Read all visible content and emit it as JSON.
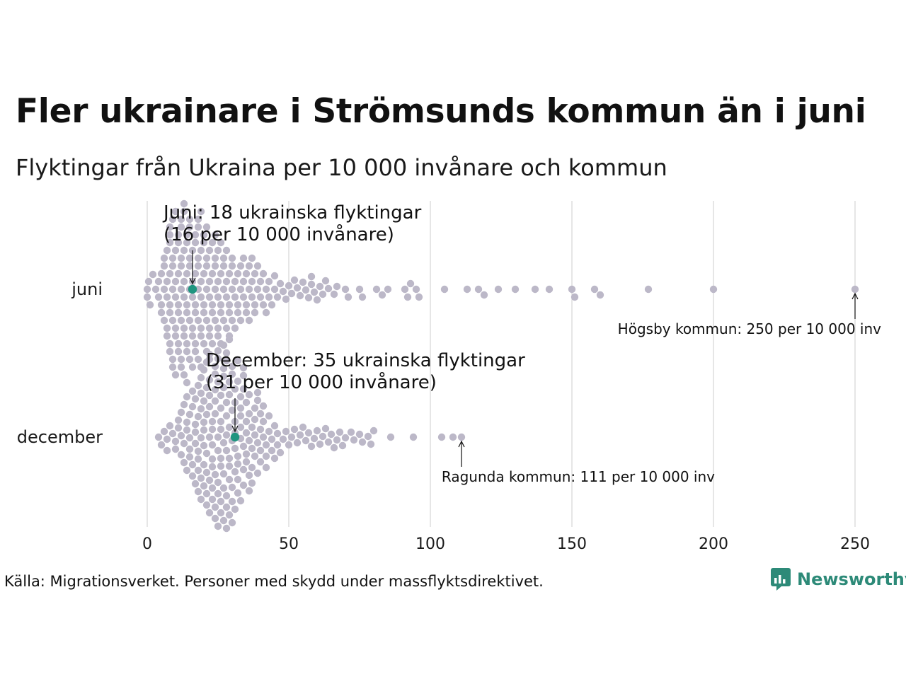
{
  "header": {
    "title": "Fler ukrainare i Strömsunds kommun än i juni",
    "subtitle": "Flyktingar från Ukraina per 10 000 invånare och kommun"
  },
  "footer": {
    "source": "Källa: Migrationsverket. Personer med skydd under massflyktsdirektivet.",
    "brand": "Newsworthy",
    "brand_icon": "newsworthy-logo-icon"
  },
  "colors": {
    "dot": "#bcb8c8",
    "highlight": "#1f9580",
    "grid": "#cccccc",
    "brand": "#2d8a78"
  },
  "chart_data": {
    "type": "scatter",
    "subtype": "beeswarm",
    "xlim": [
      0,
      250
    ],
    "xticks": [
      0,
      50,
      100,
      150,
      200,
      250
    ],
    "categories": [
      "juni",
      "december"
    ],
    "grid": true,
    "highlight": [
      {
        "category": "juni",
        "value": 16,
        "label_line1": "Juni: 18 ukrainska flyktingar",
        "label_line2": "(16 per 10 000 invånare)"
      },
      {
        "category": "december",
        "value": 31,
        "label_line1": "December: 35 ukrainska flyktingar",
        "label_line2": "(31 per 10 000 invånare)"
      }
    ],
    "annotations": [
      {
        "category": "juni",
        "value": 250,
        "text": "Högsby kommun: 250 per 10 000 inv"
      },
      {
        "category": "december",
        "value": 111,
        "text": "Ragunda kommun: 111 per 10 000 inv"
      }
    ],
    "series": [
      {
        "name": "juni",
        "values": [
          0,
          0,
          0.5,
          1,
          2,
          3,
          4,
          4,
          5,
          5,
          5,
          6,
          6,
          6,
          6,
          7,
          7,
          7,
          7,
          7,
          8,
          8,
          8,
          8,
          8,
          8,
          8,
          8,
          9,
          9,
          9,
          9,
          9,
          9,
          9,
          10,
          10,
          10,
          10,
          10,
          10,
          10,
          11,
          11,
          11,
          11,
          11,
          11,
          11,
          12,
          12,
          12,
          12,
          12,
          12,
          12,
          12,
          13,
          13,
          13,
          13,
          13,
          13,
          13,
          13,
          14,
          14,
          14,
          14,
          14,
          14,
          14,
          14,
          15,
          15,
          15,
          15,
          15,
          15,
          15,
          16,
          16,
          16,
          16,
          16,
          16,
          17,
          17,
          17,
          17,
          17,
          17,
          17,
          18,
          18,
          18,
          18,
          18,
          18,
          18,
          19,
          19,
          19,
          19,
          19,
          19,
          19,
          20,
          20,
          20,
          20,
          20,
          20,
          21,
          21,
          21,
          21,
          21,
          21,
          22,
          22,
          22,
          22,
          22,
          22,
          23,
          23,
          23,
          23,
          23,
          24,
          24,
          24,
          24,
          24,
          25,
          25,
          25,
          25,
          25,
          26,
          26,
          26,
          26,
          26,
          27,
          27,
          27,
          27,
          28,
          28,
          28,
          28,
          29,
          29,
          29,
          29,
          30,
          30,
          30,
          30,
          31,
          31,
          31,
          32,
          32,
          32,
          33,
          33,
          33,
          34,
          34,
          34,
          35,
          35,
          35,
          36,
          36,
          36,
          37,
          37,
          37,
          38,
          38,
          38,
          39,
          39,
          40,
          40,
          41,
          41,
          42,
          42,
          43,
          43,
          44,
          45,
          45,
          46,
          47,
          48,
          49,
          50,
          51,
          52,
          53,
          54,
          55,
          56,
          57,
          58,
          58,
          59,
          60,
          61,
          62,
          63,
          64,
          66,
          67,
          70,
          71,
          75,
          76,
          81,
          83,
          85,
          91,
          92,
          93,
          95,
          96,
          105,
          113,
          117,
          119,
          124,
          130,
          137,
          142,
          150,
          151,
          158,
          160,
          177,
          200,
          250
        ]
      },
      {
        "name": "december",
        "values": [
          4,
          5,
          6,
          7,
          7,
          8,
          9,
          10,
          10,
          11,
          11,
          12,
          12,
          12,
          13,
          13,
          13,
          14,
          14,
          14,
          14,
          15,
          15,
          15,
          15,
          16,
          16,
          16,
          16,
          17,
          17,
          17,
          17,
          17,
          18,
          18,
          18,
          18,
          18,
          18,
          19,
          19,
          19,
          19,
          19,
          19,
          20,
          20,
          20,
          20,
          20,
          20,
          20,
          21,
          21,
          21,
          21,
          21,
          21,
          21,
          22,
          22,
          22,
          22,
          22,
          22,
          22,
          23,
          23,
          23,
          23,
          23,
          23,
          23,
          24,
          24,
          24,
          24,
          24,
          24,
          24,
          24,
          25,
          25,
          25,
          25,
          25,
          25,
          25,
          25,
          26,
          26,
          26,
          26,
          26,
          26,
          26,
          26,
          27,
          27,
          27,
          27,
          27,
          27,
          27,
          27,
          28,
          28,
          28,
          28,
          28,
          28,
          28,
          28,
          28,
          29,
          29,
          29,
          29,
          29,
          29,
          29,
          29,
          30,
          30,
          30,
          30,
          30,
          30,
          30,
          31,
          31,
          31,
          31,
          31,
          31,
          31,
          32,
          32,
          32,
          32,
          32,
          32,
          33,
          33,
          33,
          33,
          33,
          33,
          34,
          34,
          34,
          34,
          34,
          34,
          35,
          35,
          35,
          35,
          35,
          36,
          36,
          36,
          36,
          36,
          37,
          37,
          37,
          37,
          38,
          38,
          38,
          38,
          39,
          39,
          39,
          39,
          40,
          40,
          40,
          40,
          41,
          41,
          41,
          42,
          42,
          42,
          43,
          43,
          44,
          44,
          45,
          45,
          46,
          46,
          47,
          48,
          49,
          50,
          51,
          52,
          53,
          54,
          55,
          56,
          57,
          58,
          59,
          60,
          61,
          62,
          63,
          64,
          65,
          66,
          67,
          68,
          69,
          70,
          72,
          73,
          75,
          76,
          78,
          79,
          80,
          86,
          94,
          104,
          108,
          111
        ]
      }
    ],
    "category_labels": {
      "juni": "juni",
      "december": "december"
    }
  }
}
